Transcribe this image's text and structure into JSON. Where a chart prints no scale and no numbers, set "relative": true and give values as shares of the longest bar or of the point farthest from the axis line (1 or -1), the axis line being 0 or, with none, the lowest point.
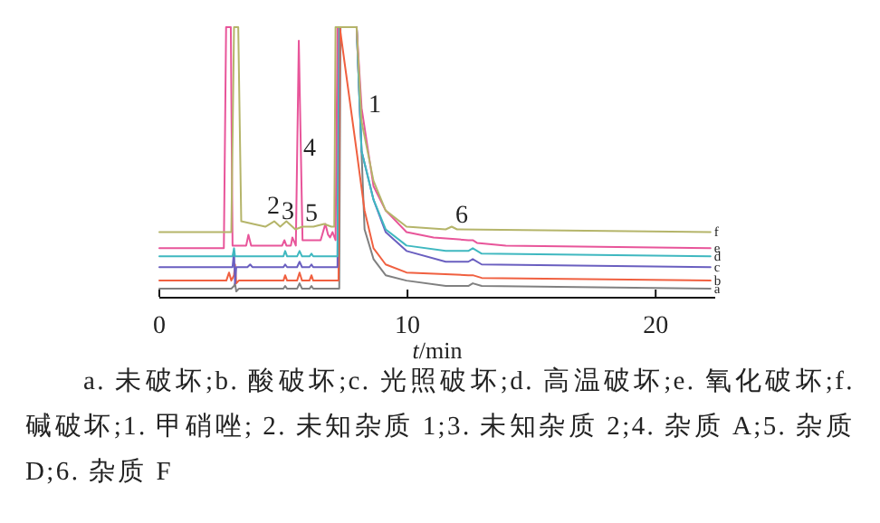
{
  "chart_data": {
    "type": "line",
    "relative": true,
    "xlabel": "t/min",
    "xlim": [
      0,
      22.4
    ],
    "xticks": [
      0,
      10,
      20
    ],
    "grid": false,
    "marker": "none",
    "line_style": "solid",
    "series": [
      {
        "name": "a",
        "color": "#808080",
        "x": [
          0,
          2.9,
          3.01,
          3.05,
          3.1,
          3.2,
          5.0,
          5.07,
          5.15,
          5.55,
          5.65,
          5.75,
          6.05,
          6.13,
          6.2,
          7.25,
          7.3,
          7.95,
          8.27,
          8.63,
          9.12,
          9.96,
          11.54,
          12.45,
          12.63,
          12.99,
          22.21
        ],
        "values": [
          0.03,
          0.03,
          0.04,
          0.05,
          0.02,
          0.03,
          0.03,
          0.04,
          0.03,
          0.03,
          0.05,
          0.03,
          0.03,
          0.04,
          0.03,
          0.03,
          1,
          1,
          0.25,
          0.14,
          0.08,
          0.06,
          0.04,
          0.04,
          0.05,
          0.04,
          0.03
        ]
      },
      {
        "name": "b",
        "color": "#f06040",
        "x": [
          0,
          2.7,
          2.81,
          2.9,
          3.01,
          3.05,
          3.1,
          3.2,
          5.0,
          5.07,
          5.15,
          5.55,
          5.65,
          5.75,
          6.05,
          6.13,
          6.2,
          7.22,
          7.27,
          7.95,
          8.27,
          8.63,
          9.12,
          9.96,
          12.45,
          12.63,
          12.99,
          22.21
        ],
        "values": [
          0.06,
          0.06,
          0.09,
          0.06,
          0.08,
          0.12,
          0.05,
          0.06,
          0.06,
          0.08,
          0.06,
          0.06,
          0.09,
          0.06,
          0.06,
          0.08,
          0.06,
          0.06,
          1,
          0.54,
          0.32,
          0.18,
          0.12,
          0.09,
          0.08,
          0.08,
          0.07,
          0.06
        ]
      },
      {
        "name": "c",
        "color": "#6a5fc0",
        "x": [
          0,
          2.95,
          3.01,
          3.05,
          3.1,
          3.2,
          3.55,
          3.66,
          3.75,
          5.0,
          5.07,
          5.15,
          5.55,
          5.65,
          5.75,
          6.05,
          6.13,
          6.2,
          7.18,
          7.22,
          7.95,
          8.15,
          8.63,
          9.12,
          9.96,
          11.54,
          12.45,
          12.63,
          12.99,
          22.21
        ],
        "values": [
          0.11,
          0.11,
          0.17,
          0.05,
          0.11,
          0.11,
          0.11,
          0.12,
          0.11,
          0.11,
          0.12,
          0.11,
          0.11,
          0.13,
          0.11,
          0.11,
          0.12,
          0.11,
          0.11,
          1,
          1,
          0.54,
          0.36,
          0.24,
          0.17,
          0.13,
          0.13,
          0.14,
          0.12,
          0.11
        ]
      },
      {
        "name": "d",
        "color": "#3fb8c0",
        "x": [
          0,
          2.95,
          3.01,
          3.05,
          3.1,
          5.0,
          5.07,
          5.15,
          5.55,
          5.65,
          5.75,
          6.05,
          6.13,
          6.2,
          7.18,
          7.22,
          7.95,
          8.15,
          8.63,
          9.12,
          9.96,
          11.54,
          12.45,
          12.63,
          12.99,
          22.21
        ],
        "values": [
          0.15,
          0.15,
          0.18,
          0.15,
          0.15,
          0.15,
          0.17,
          0.15,
          0.15,
          0.17,
          0.15,
          0.15,
          0.16,
          0.15,
          0.15,
          1,
          1,
          0.54,
          0.36,
          0.25,
          0.19,
          0.17,
          0.17,
          0.18,
          0.16,
          0.15
        ]
      },
      {
        "name": "e",
        "color": "#e8559a",
        "x": [
          0,
          2.6,
          2.69,
          2.88,
          2.95,
          3.05,
          3.5,
          3.59,
          3.7,
          4.95,
          5.04,
          5.12,
          5.3,
          5.36,
          5.5,
          5.62,
          5.77,
          6.5,
          6.69,
          6.8,
          6.88,
          6.98,
          7.1,
          7.18,
          7.95,
          8.15,
          8.63,
          9.12,
          9.96,
          11.05,
          12.45,
          12.63,
          12.8,
          13.96,
          22.21
        ],
        "values": [
          0.18,
          0.18,
          1,
          1,
          0.19,
          0.19,
          0.19,
          0.23,
          0.19,
          0.19,
          0.21,
          0.19,
          0.19,
          0.22,
          0.19,
          0.95,
          0.21,
          0.21,
          0.27,
          0.23,
          0.22,
          0.24,
          0.21,
          1,
          1,
          0.7,
          0.41,
          0.32,
          0.24,
          0.22,
          0.21,
          0.21,
          0.2,
          0.19,
          0.18
        ]
      },
      {
        "name": "f",
        "color": "#b5b56a",
        "x": [
          0,
          2.9,
          3.01,
          3.18,
          3.3,
          3.78,
          4.27,
          4.63,
          4.87,
          5.12,
          5.48,
          5.77,
          6.21,
          6.64,
          6.93,
          7.05,
          7.1,
          7.95,
          8.15,
          8.63,
          9.12,
          9.96,
          11.54,
          11.78,
          12.0,
          22.21
        ],
        "values": [
          0.24,
          0.24,
          1,
          1,
          0.28,
          0.27,
          0.26,
          0.28,
          0.26,
          0.28,
          0.25,
          0.26,
          0.26,
          0.27,
          0.26,
          0.26,
          1,
          1,
          0.65,
          0.43,
          0.32,
          0.26,
          0.25,
          0.26,
          0.25,
          0.24
        ]
      }
    ],
    "annotations": [
      "1",
      "2",
      "3",
      "4",
      "5",
      "6",
      "a. 未破坏;b. 酸破坏;c. 光照破坏;d. 高温破坏;e. 氧化破坏;f. 碱破坏;1. 甲硝唑; 2. 未知杂质 1;3. 未知杂质 2;4. 杂质 A;5. 杂质 D;6. 杂质 F"
    ]
  }
}
